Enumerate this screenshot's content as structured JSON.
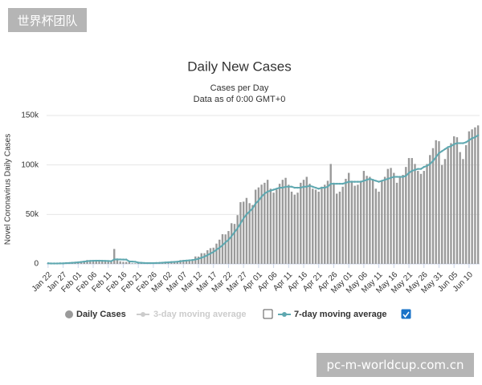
{
  "watermark_top": "世界杯团队",
  "watermark_bottom": "pc-m-worldcup.com.cn",
  "chart_data": {
    "type": "bar",
    "title": "Daily New Cases",
    "subtitle": [
      "Cases per Day",
      "Data as of 0:00 GMT+0"
    ],
    "y_label": "Novel Coronavirus Daily Cases",
    "ylim": [
      0,
      150000
    ],
    "yticks": [
      0,
      {
        "value": 50000,
        "label": "50k"
      },
      {
        "value": 100000,
        "label": "100k"
      },
      {
        "value": 150000,
        "label": "150k"
      }
    ],
    "grid": true,
    "categories": [
      "Jan 22",
      null,
      null,
      null,
      null,
      "Jan 27",
      null,
      null,
      null,
      null,
      "Feb 01",
      null,
      null,
      null,
      null,
      "Feb 06",
      null,
      null,
      null,
      null,
      "Feb 11",
      null,
      null,
      null,
      null,
      "Feb 16",
      null,
      null,
      null,
      null,
      "Feb 21",
      null,
      null,
      null,
      null,
      "Feb 26",
      null,
      null,
      null,
      null,
      "Mar 02",
      null,
      null,
      null,
      null,
      "Mar 07",
      null,
      null,
      null,
      null,
      "Mar 12",
      null,
      null,
      null,
      null,
      "Mar 17",
      null,
      null,
      null,
      null,
      "Mar 22",
      null,
      null,
      null,
      null,
      "Mar 27",
      null,
      null,
      null,
      null,
      "Apr 01",
      null,
      null,
      null,
      null,
      "Apr 06",
      null,
      null,
      null,
      null,
      "Apr 11",
      null,
      null,
      null,
      null,
      "Apr 16",
      null,
      null,
      null,
      null,
      "Apr 21",
      null,
      null,
      null,
      null,
      "Apr 26",
      null,
      null,
      null,
      null,
      "May 01",
      null,
      null,
      null,
      null,
      "May 06",
      null,
      null,
      null,
      null,
      "May 11",
      null,
      null,
      null,
      null,
      "May 16",
      null,
      null,
      null,
      null,
      "May 21",
      null,
      null,
      null,
      null,
      "May 26",
      null,
      null,
      null,
      null,
      "May 31",
      null,
      null,
      null,
      null,
      "Jun 05",
      null,
      null,
      null,
      null,
      "Jun 10",
      null,
      null,
      null
    ],
    "series": [
      {
        "name": "Daily Cases",
        "color": "#9a9a9a",
        "kind": "bar",
        "values": [
          600,
          100,
          300,
          500,
          700,
          800,
          1500,
          1200,
          1900,
          2100,
          2100,
          2600,
          3000,
          3900,
          3700,
          3200,
          3400,
          2700,
          3000,
          2600,
          2100,
          2000,
          15100,
          5100,
          2600,
          2100,
          2000,
          1900,
          600,
          600,
          1000,
          900,
          700,
          600,
          900,
          900,
          1100,
          1400,
          1800,
          2000,
          1900,
          2500,
          2200,
          2700,
          3800,
          4000,
          3900,
          3900,
          4500,
          7500,
          7400,
          10800,
          10800,
          13800,
          15900,
          16400,
          20500,
          24500,
          30000,
          29800,
          33200,
          41100,
          40400,
          49300,
          62400,
          62900,
          66700,
          61400,
          59500,
          75000,
          77300,
          80100,
          82000,
          85000,
          76000,
          72000,
          75000,
          81000,
          85000,
          87000,
          80000,
          73000,
          70000,
          72000,
          82000,
          85000,
          88000,
          81000,
          76000,
          75000,
          73000,
          78000,
          80000,
          84000,
          101000,
          82000,
          71000,
          73000,
          78000,
          86000,
          92000,
          84000,
          79000,
          80000,
          84000,
          94000,
          89000,
          88000,
          85000,
          76000,
          73000,
          84000,
          88000,
          96000,
          97000,
          92000,
          82000,
          88000,
          90000,
          98000,
          107000,
          107000,
          101000,
          94000,
          91000,
          94000,
          101000,
          110000,
          117000,
          125000,
          124000,
          100000,
          106000,
          117000,
          122000,
          129000,
          128000,
          113000,
          106000,
          120000,
          134000,
          136000,
          138000,
          140000
        ]
      },
      {
        "name": "7-day moving average",
        "color": "#5fa8b0",
        "kind": "line",
        "checked": true,
        "values": [
          600,
          400,
          400,
          400,
          500,
          500,
          800,
          900,
          1100,
          1300,
          1600,
          1900,
          2300,
          2700,
          3000,
          3100,
          3200,
          3200,
          3100,
          3000,
          2900,
          2700,
          4500,
          4600,
          4500,
          4400,
          4400,
          2500,
          2300,
          2100,
          1300,
          1100,
          900,
          800,
          800,
          800,
          900,
          1000,
          1200,
          1400,
          1600,
          1800,
          2000,
          2200,
          2600,
          3000,
          3300,
          3600,
          3900,
          4400,
          5100,
          6200,
          7300,
          8800,
          10500,
          12000,
          14300,
          16400,
          18800,
          21800,
          24300,
          28000,
          32000,
          36000,
          41000,
          46000,
          50000,
          53000,
          56000,
          61000,
          64000,
          68000,
          71000,
          73000,
          74000,
          75000,
          76000,
          77000,
          77000,
          78000,
          78000,
          78000,
          77000,
          77000,
          77000,
          78000,
          78000,
          79000,
          78000,
          77000,
          76000,
          77000,
          77000,
          78000,
          81000,
          81000,
          81000,
          81000,
          81000,
          82000,
          83000,
          83000,
          83000,
          83000,
          83000,
          84000,
          85000,
          86000,
          85000,
          84000,
          83000,
          84000,
          85000,
          86000,
          87000,
          88000,
          88000,
          88000,
          88000,
          89000,
          92000,
          94000,
          95000,
          96000,
          96000,
          98000,
          99000,
          101000,
          104000,
          108000,
          112000,
          114000,
          116000,
          118000,
          119000,
          121000,
          122000,
          122000,
          122000,
          123000,
          125000,
          127000,
          128000,
          130000
        ]
      }
    ],
    "disabled_series": [
      {
        "name": "3-day moving average",
        "color": "#cccccc",
        "checked": false
      }
    ]
  }
}
